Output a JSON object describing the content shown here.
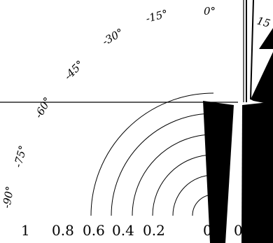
{
  "chart_data": {
    "type": "polar-bar",
    "title": "",
    "angular_axis": {
      "unit": "degrees",
      "tick_labels": [
        "-90°",
        "-75°",
        "-60°",
        "-45°",
        "-30°",
        "-15°",
        "0°",
        "15"
      ]
    },
    "radial_axis": {
      "tick_labels": [
        "1",
        "0.8",
        "0.6",
        "0.4",
        "0.2",
        "0",
        "0"
      ],
      "range": [
        0,
        1
      ],
      "grid": true
    },
    "series": [
      {
        "color": "#000000",
        "bars": [
          {
            "angle_deg": 0,
            "value": 0.05
          },
          {
            "angle_deg": 10,
            "value": 1.0
          },
          {
            "angle_deg": 20,
            "value": 0.4
          },
          {
            "angle_deg": 28,
            "value": 0.25
          }
        ]
      }
    ],
    "colors": {
      "bars": "#000000",
      "grid": "#000000",
      "background": "#ffffff"
    }
  }
}
